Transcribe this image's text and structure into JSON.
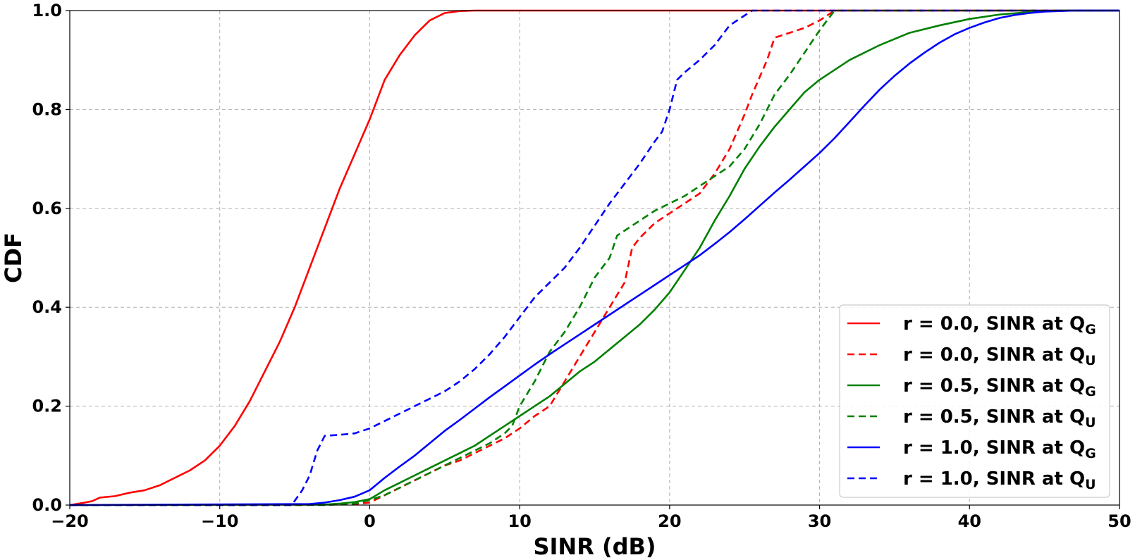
{
  "chart_data": {
    "type": "line",
    "title": "",
    "xlabel": "SINR (dB)",
    "ylabel": "CDF",
    "xlim": [
      -20,
      50
    ],
    "ylim": [
      0.0,
      1.0
    ],
    "xticks": [
      -20,
      -10,
      0,
      10,
      20,
      30,
      40,
      50
    ],
    "xtick_labels": [
      "−20",
      "−10",
      "0",
      "10",
      "20",
      "30",
      "40",
      "50"
    ],
    "yticks": [
      0.0,
      0.2,
      0.4,
      0.6,
      0.8,
      1.0
    ],
    "ytick_labels": [
      "0.0",
      "0.2",
      "0.4",
      "0.6",
      "0.8",
      "1.0"
    ],
    "grid": true,
    "legend_position": "lower-right",
    "series": [
      {
        "name": "r = 0.0, SINR at Q",
        "subscript": "G",
        "color": "#ff0000",
        "dash": "solid",
        "x": [
          -20,
          -19,
          -18.5,
          -18,
          -17,
          -16,
          -15,
          -14,
          -13,
          -12,
          -11,
          -10,
          -9,
          -8,
          -7,
          -6,
          -5,
          -4.5,
          -4,
          -3.5,
          -3,
          -2,
          -1,
          0,
          1,
          2,
          3,
          4,
          5,
          6,
          7,
          50
        ],
        "y": [
          0.0,
          0.005,
          0.008,
          0.015,
          0.018,
          0.025,
          0.03,
          0.04,
          0.055,
          0.07,
          0.09,
          0.12,
          0.16,
          0.21,
          0.27,
          0.33,
          0.4,
          0.44,
          0.48,
          0.52,
          0.56,
          0.64,
          0.71,
          0.78,
          0.86,
          0.91,
          0.95,
          0.98,
          0.995,
          0.999,
          1.0,
          1.0
        ]
      },
      {
        "name": "r = 0.0, SINR at Q",
        "subscript": "U",
        "color": "#ff0000",
        "dash": "dashed",
        "x": [
          -20,
          -5,
          -1,
          0,
          1,
          2,
          3,
          4,
          5,
          6,
          7,
          8,
          9,
          10,
          11,
          12,
          13,
          14,
          15,
          16,
          17,
          17.5,
          18,
          19,
          20,
          21,
          22,
          23,
          24,
          25,
          25.5,
          26.5,
          27,
          28,
          29,
          30,
          31,
          50
        ],
        "y": [
          0.0,
          0.0,
          0.002,
          0.005,
          0.02,
          0.035,
          0.05,
          0.065,
          0.08,
          0.09,
          0.105,
          0.12,
          0.135,
          0.155,
          0.18,
          0.2,
          0.25,
          0.3,
          0.35,
          0.4,
          0.45,
          0.52,
          0.54,
          0.57,
          0.59,
          0.61,
          0.63,
          0.67,
          0.72,
          0.79,
          0.83,
          0.9,
          0.945,
          0.955,
          0.965,
          0.98,
          1.0,
          1.0
        ]
      },
      {
        "name": "r = 0.5, SINR at Q",
        "subscript": "G",
        "color": "#008000",
        "dash": "solid",
        "x": [
          -20,
          -3,
          -2,
          -1,
          0,
          1,
          2,
          3,
          4,
          5,
          6,
          7,
          8,
          9,
          10,
          11,
          12,
          13,
          14,
          15,
          16,
          17,
          18,
          19,
          20,
          21,
          22,
          23,
          24,
          25,
          26,
          27,
          28,
          29,
          30,
          32,
          34,
          36,
          38,
          40,
          42,
          44,
          46,
          50
        ],
        "y": [
          0.0,
          0.001,
          0.003,
          0.006,
          0.012,
          0.03,
          0.045,
          0.06,
          0.075,
          0.09,
          0.105,
          0.12,
          0.14,
          0.16,
          0.18,
          0.2,
          0.22,
          0.245,
          0.27,
          0.29,
          0.315,
          0.34,
          0.365,
          0.395,
          0.43,
          0.475,
          0.52,
          0.575,
          0.625,
          0.68,
          0.725,
          0.765,
          0.8,
          0.835,
          0.86,
          0.9,
          0.93,
          0.955,
          0.97,
          0.983,
          0.992,
          0.997,
          1.0,
          1.0
        ]
      },
      {
        "name": "r = 0.5, SINR at Q",
        "subscript": "U",
        "color": "#008000",
        "dash": "dashed",
        "x": [
          -20,
          -3,
          -1,
          0,
          1,
          2,
          3,
          4,
          5,
          6,
          7,
          8,
          9,
          9.5,
          10,
          11,
          12,
          13,
          14,
          15,
          16,
          16.5,
          18,
          19,
          20,
          21,
          22,
          23,
          24,
          25,
          26,
          27,
          28,
          29,
          30,
          31,
          50
        ],
        "y": [
          0.0,
          0.0,
          0.003,
          0.01,
          0.02,
          0.035,
          0.05,
          0.065,
          0.08,
          0.095,
          0.11,
          0.125,
          0.145,
          0.16,
          0.2,
          0.25,
          0.31,
          0.35,
          0.4,
          0.46,
          0.5,
          0.545,
          0.575,
          0.595,
          0.61,
          0.625,
          0.645,
          0.665,
          0.685,
          0.72,
          0.77,
          0.83,
          0.87,
          0.915,
          0.96,
          1.0,
          1.0
        ]
      },
      {
        "name": "r = 1.0, SINR at Q",
        "subscript": "G",
        "color": "#0000ff",
        "dash": "solid",
        "x": [
          -20,
          -4,
          -3,
          -2,
          -1,
          0,
          1,
          2,
          3,
          4,
          5,
          6,
          7,
          8,
          9,
          10,
          11,
          12,
          13,
          14,
          15,
          16,
          17,
          18,
          19,
          20,
          21,
          22,
          23,
          24,
          25,
          26,
          27,
          28,
          29,
          30,
          31,
          32,
          33,
          34,
          35,
          36,
          37,
          38,
          39,
          40,
          41,
          42,
          43,
          44,
          45,
          46,
          47,
          50
        ],
        "y": [
          0.0,
          0.002,
          0.005,
          0.01,
          0.017,
          0.03,
          0.055,
          0.078,
          0.1,
          0.125,
          0.15,
          0.172,
          0.195,
          0.218,
          0.24,
          0.262,
          0.284,
          0.305,
          0.325,
          0.345,
          0.365,
          0.385,
          0.405,
          0.425,
          0.445,
          0.465,
          0.485,
          0.505,
          0.528,
          0.552,
          0.578,
          0.605,
          0.632,
          0.658,
          0.685,
          0.712,
          0.742,
          0.775,
          0.808,
          0.84,
          0.868,
          0.893,
          0.915,
          0.935,
          0.952,
          0.965,
          0.976,
          0.985,
          0.991,
          0.995,
          0.998,
          0.999,
          1.0,
          1.0
        ]
      },
      {
        "name": "r = 1.0, SINR at Q",
        "subscript": "U",
        "color": "#0000ff",
        "dash": "dashed",
        "x": [
          -20,
          -5.2,
          -4.5,
          -4,
          -3.5,
          -3,
          -2,
          -1,
          0,
          1,
          2,
          3,
          4,
          5,
          6,
          7,
          8,
          9,
          10,
          11,
          12,
          13,
          14,
          15,
          16,
          17,
          18,
          19,
          19.5,
          20,
          20.5,
          21,
          22,
          23,
          24,
          25,
          25.5,
          50
        ],
        "y": [
          0.0,
          0.0,
          0.03,
          0.06,
          0.11,
          0.14,
          0.142,
          0.145,
          0.155,
          0.17,
          0.185,
          0.2,
          0.215,
          0.23,
          0.25,
          0.275,
          0.305,
          0.34,
          0.38,
          0.42,
          0.45,
          0.48,
          0.52,
          0.565,
          0.61,
          0.65,
          0.69,
          0.735,
          0.755,
          0.8,
          0.86,
          0.875,
          0.9,
          0.93,
          0.97,
          0.99,
          1.0,
          1.0
        ]
      }
    ]
  }
}
